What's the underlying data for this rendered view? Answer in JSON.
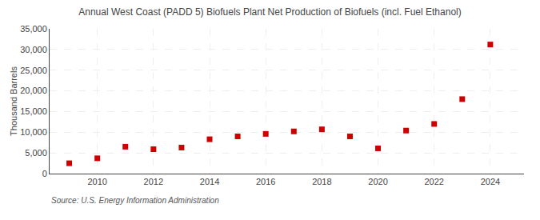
{
  "chart_data": {
    "type": "scatter",
    "title": "Annual West Coast (PADD 5) Biofuels Plant Net Production of Biofuels (incl. Fuel Ethanol)",
    "ylabel": "Thousand Barrels",
    "source": "Source: U.S. Energy Information Administration",
    "x": [
      2009,
      2010,
      2011,
      2012,
      2013,
      2014,
      2015,
      2016,
      2017,
      2018,
      2019,
      2020,
      2021,
      2022,
      2023,
      2024
    ],
    "values": [
      2500,
      3700,
      6500,
      5900,
      6300,
      8300,
      9000,
      9600,
      10200,
      10700,
      9000,
      6100,
      10400,
      12000,
      18000,
      31200
    ],
    "color": "#cc0000",
    "marker": "square",
    "xlim": [
      2008.3,
      2025.2
    ],
    "xticks": [
      2010,
      2012,
      2014,
      2016,
      2018,
      2020,
      2022,
      2024
    ],
    "ylim": [
      0,
      35000
    ],
    "yticks": [
      0,
      {
        "value": 5000,
        "label": "5,000"
      },
      {
        "value": 10000,
        "label": "10,000"
      },
      {
        "value": 15000,
        "label": "15,000"
      },
      {
        "value": 20000,
        "label": "20,000"
      },
      {
        "value": 25000,
        "label": "25,000"
      },
      {
        "value": 30000,
        "label": "30,000"
      },
      {
        "value": 35000,
        "label": "35,000"
      }
    ],
    "grid": true
  }
}
